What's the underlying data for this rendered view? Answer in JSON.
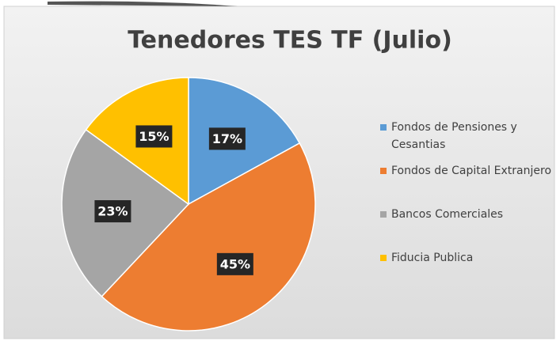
{
  "chart_data": {
    "type": "pie",
    "title": "Tenedores TES TF (Julio)",
    "categories": [
      "Fondos de Pensiones y Cesantias",
      "Fondos de Capital Extranjero",
      "Bancos Comerciales",
      "Fiducia Publica"
    ],
    "values": [
      17,
      45,
      23,
      15
    ],
    "value_labels": [
      "17%",
      "45%",
      "23%",
      "15%"
    ],
    "colors": [
      "#5b9bd5",
      "#ed7d31",
      "#a5a5a5",
      "#ffc000"
    ],
    "legend": "right"
  }
}
